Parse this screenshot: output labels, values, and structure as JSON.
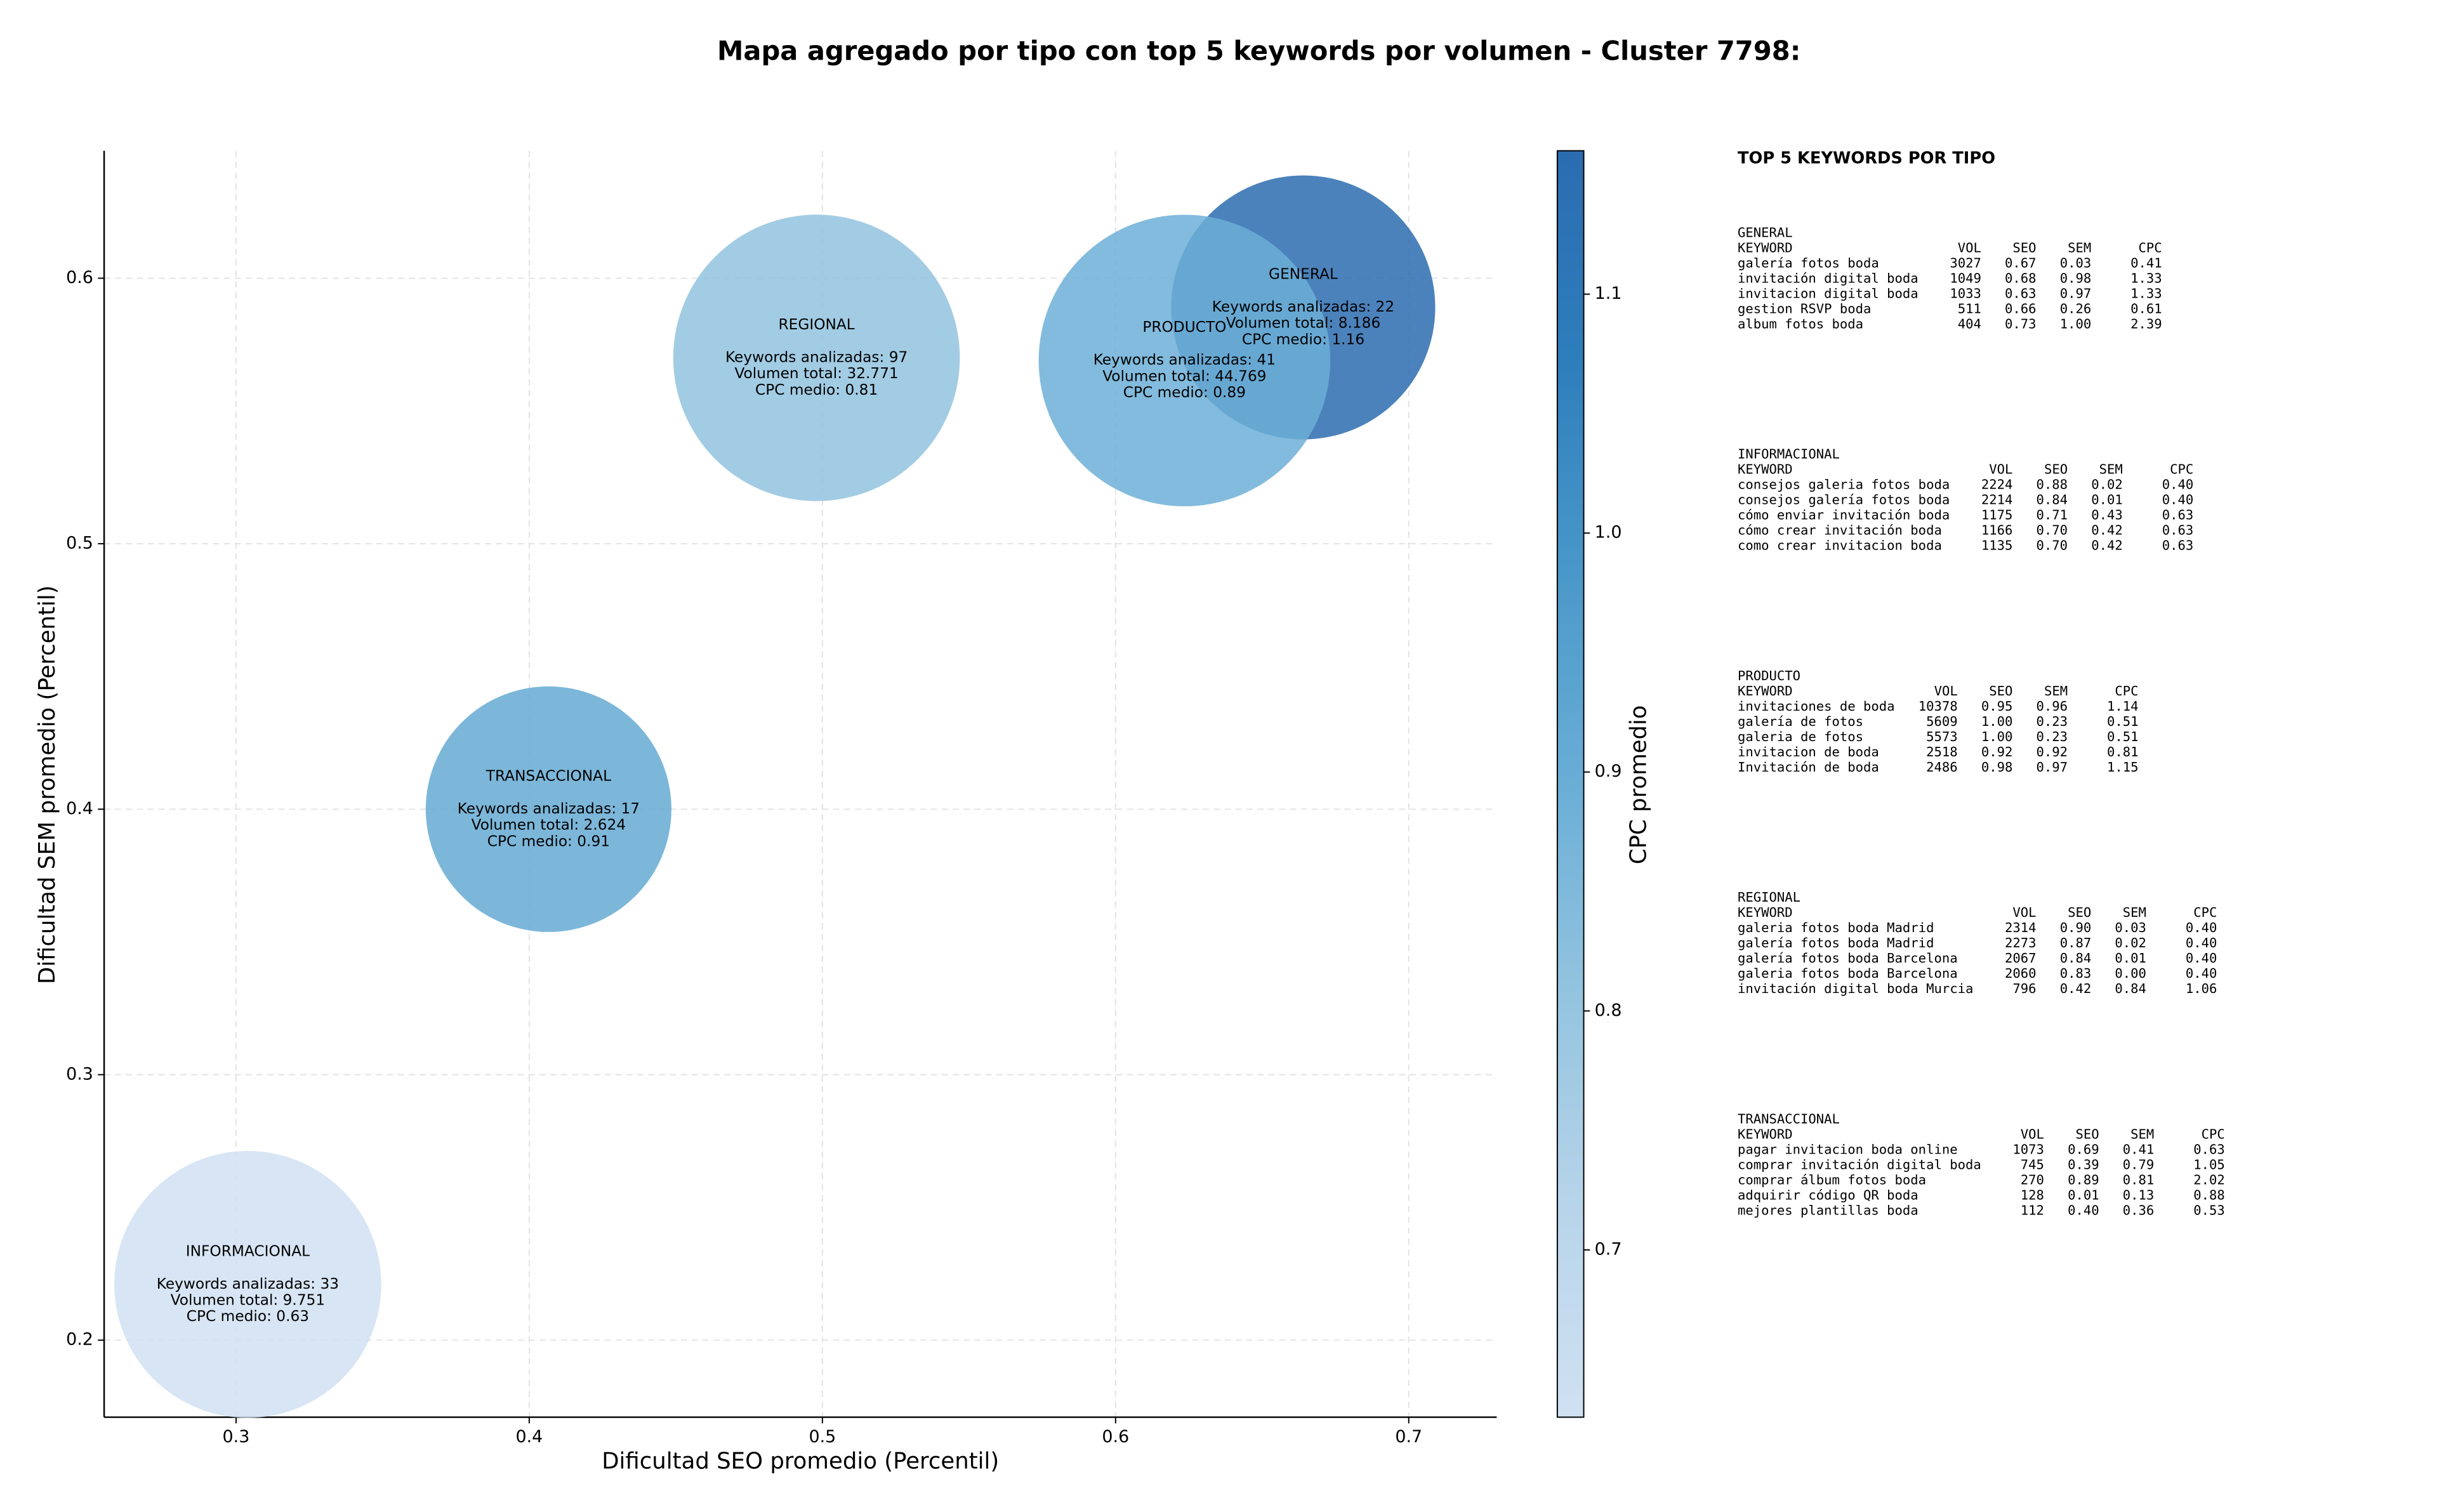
{
  "chart_data": {
    "type": "bubble",
    "title": "Mapa agregado por tipo con top 5 keywords por volumen - Cluster 7798:",
    "x_label": "Dificultad SEO promedio (Percentil)",
    "y_label": "Dificultad SEM promedio (Percentil)",
    "xlim": [
      0.255,
      0.73
    ],
    "ylim": [
      0.171,
      0.648
    ],
    "xticks": [
      0.3,
      0.4,
      0.5,
      0.6,
      0.7
    ],
    "yticks": [
      0.2,
      0.3,
      0.4,
      0.5,
      0.6
    ],
    "grid": true,
    "colorbar": {
      "label": "CPC promedio",
      "lim": [
        0.63,
        1.16
      ],
      "ticks": [
        0.7,
        0.8,
        0.9,
        {
          "value": 1,
          "label": "1.0"
        },
        1.1
      ],
      "colormap": [
        "#d0e1f2",
        "#b7d4ea",
        "#94c4df",
        "#6aaed6",
        "#4a98c9",
        "#2e7ebc",
        "#2b6cb0"
      ]
    },
    "points": [
      {
        "name": "GENERAL",
        "x": 0.664,
        "y": 0.589,
        "volume": 8186,
        "cpc": 1.16,
        "labels": [
          "Keywords analizadas: 22",
          "Volumen total: 8.186",
          "CPC medio: 1.16"
        ]
      },
      {
        "name": "INFORMACIONAL",
        "x": 0.304,
        "y": 0.221,
        "volume": 9751,
        "cpc": 0.63,
        "labels": [
          "Keywords analizadas: 33",
          "Volumen total: 9.751",
          "CPC medio: 0.63"
        ]
      },
      {
        "name": "PRODUCTO",
        "x": 0.6235,
        "y": 0.569,
        "volume": 44769,
        "cpc": 0.89,
        "labels": [
          "Keywords analizadas: 41",
          "Volumen total: 44.769",
          "CPC medio: 0.89"
        ]
      },
      {
        "name": "REGIONAL",
        "x": 0.498,
        "y": 0.57,
        "volume": 32771,
        "cpc": 0.81,
        "labels": [
          "Keywords analizadas: 97",
          "Volumen total: 32.771",
          "CPC medio: 0.81"
        ]
      },
      {
        "name": "TRANSACCIONAL",
        "x": 0.4066,
        "y": 0.4,
        "volume": 2624,
        "cpc": 0.91,
        "labels": [
          "Keywords analizadas: 17",
          "Volumen total: 2.624",
          "CPC medio: 0.91"
        ]
      }
    ]
  },
  "side_panel": {
    "title": "TOP 5 KEYWORDS POR TIPO",
    "columns": [
      "KEYWORD",
      "VOL",
      "SEO",
      "SEM",
      "CPC"
    ],
    "groups": [
      {
        "name": "GENERAL",
        "rows": [
          [
            "galería fotos boda",
            "3027",
            "0.67",
            "0.03",
            "0.41"
          ],
          [
            "invitación digital boda",
            "1049",
            "0.68",
            "0.98",
            "1.33"
          ],
          [
            "invitacion digital boda",
            "1033",
            "0.63",
            "0.97",
            "1.33"
          ],
          [
            "gestion RSVP boda",
            "511",
            "0.66",
            "0.26",
            "0.61"
          ],
          [
            "album fotos boda",
            "404",
            "0.73",
            "1.00",
            "2.39"
          ]
        ]
      },
      {
        "name": "INFORMACIONAL",
        "rows": [
          [
            "consejos galeria fotos boda",
            "2224",
            "0.88",
            "0.02",
            "0.40"
          ],
          [
            "consejos galería fotos boda",
            "2214",
            "0.84",
            "0.01",
            "0.40"
          ],
          [
            "cómo enviar invitación boda",
            "1175",
            "0.71",
            "0.43",
            "0.63"
          ],
          [
            "cómo crear invitación boda",
            "1166",
            "0.70",
            "0.42",
            "0.63"
          ],
          [
            "como crear invitacion boda",
            "1135",
            "0.70",
            "0.42",
            "0.63"
          ]
        ]
      },
      {
        "name": "PRODUCTO",
        "rows": [
          [
            "invitaciones de boda",
            "10378",
            "0.95",
            "0.96",
            "1.14"
          ],
          [
            "galería de fotos",
            "5609",
            "1.00",
            "0.23",
            "0.51"
          ],
          [
            "galeria de fotos",
            "5573",
            "1.00",
            "0.23",
            "0.51"
          ],
          [
            "invitacion de boda",
            "2518",
            "0.92",
            "0.92",
            "0.81"
          ],
          [
            "Invitación de boda",
            "2486",
            "0.98",
            "0.97",
            "1.15"
          ]
        ]
      },
      {
        "name": "REGIONAL",
        "rows": [
          [
            "galeria fotos boda Madrid",
            "2314",
            "0.90",
            "0.03",
            "0.40"
          ],
          [
            "galería fotos boda Madrid",
            "2273",
            "0.87",
            "0.02",
            "0.40"
          ],
          [
            "galería fotos boda Barcelona",
            "2067",
            "0.84",
            "0.01",
            "0.40"
          ],
          [
            "galeria fotos boda Barcelona",
            "2060",
            "0.83",
            "0.00",
            "0.40"
          ],
          [
            "invitación digital boda Murcia",
            "796",
            "0.42",
            "0.84",
            "1.06"
          ]
        ]
      },
      {
        "name": "TRANSACCIONAL",
        "rows": [
          [
            "pagar invitacion boda online",
            "1073",
            "0.69",
            "0.41",
            "0.63"
          ],
          [
            "comprar invitación digital boda",
            "745",
            "0.39",
            "0.79",
            "1.05"
          ],
          [
            "comprar álbum fotos boda",
            "270",
            "0.89",
            "0.81",
            "2.02"
          ],
          [
            "adquirir código QR boda",
            "128",
            "0.01",
            "0.13",
            "0.88"
          ],
          [
            "mejores plantillas boda",
            "112",
            "0.40",
            "0.36",
            "0.53"
          ]
        ]
      }
    ]
  }
}
